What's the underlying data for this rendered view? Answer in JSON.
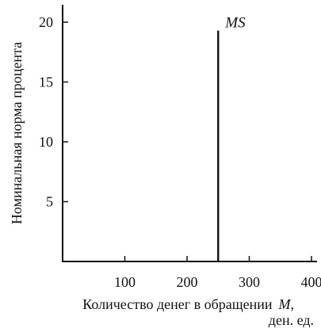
{
  "chart_data": {
    "type": "line",
    "title": "",
    "ylabel": "Номинальная норма процента",
    "xlabel": "Количество денег в обращении",
    "xlabel_symbol": "M,",
    "xlabel_unit": "ден. ед.",
    "xlim": [
      0,
      420
    ],
    "ylim": [
      0,
      21.5
    ],
    "xticks": [
      100,
      200,
      300,
      400
    ],
    "yticks": [
      5,
      10,
      15,
      20
    ],
    "grid": false,
    "series": [
      {
        "name": "MS",
        "x": [
          250,
          250
        ],
        "y": [
          0,
          19.3
        ]
      }
    ]
  }
}
